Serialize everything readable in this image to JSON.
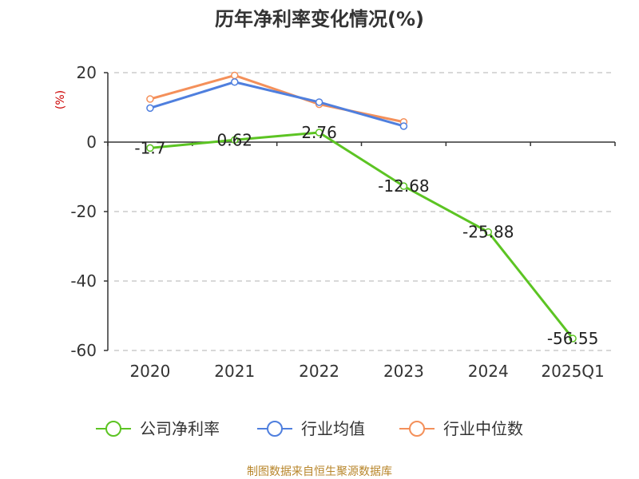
{
  "chart_data": {
    "type": "line",
    "title": "历年净利率变化情况(%)",
    "unit_label": "(%)",
    "categories": [
      "2020",
      "2021",
      "2022",
      "2023",
      "2024",
      "2025Q1"
    ],
    "y_ticks": [
      "20",
      "0",
      "-20",
      "-40",
      "-60"
    ],
    "ylim": [
      -60,
      20
    ],
    "grid": true,
    "legend_position": "bottom",
    "series": [
      {
        "name": "公司净利率",
        "color": "#5cc423",
        "values": [
          -1.7,
          0.62,
          2.76,
          -12.68,
          -25.88,
          -56.55
        ],
        "labels": [
          "-1.7",
          "0.62",
          "2.76",
          "-12.68",
          "-25.88",
          "-56.55"
        ]
      },
      {
        "name": "行业均值",
        "color": "#4f7fde",
        "values": [
          9.8,
          17.3,
          11.5,
          4.6,
          null,
          null
        ]
      },
      {
        "name": "行业中位数",
        "color": "#f4905a",
        "values": [
          12.4,
          19.2,
          10.9,
          5.8,
          null,
          null
        ]
      }
    ],
    "source": "制图数据来自恒生聚源数据库"
  }
}
